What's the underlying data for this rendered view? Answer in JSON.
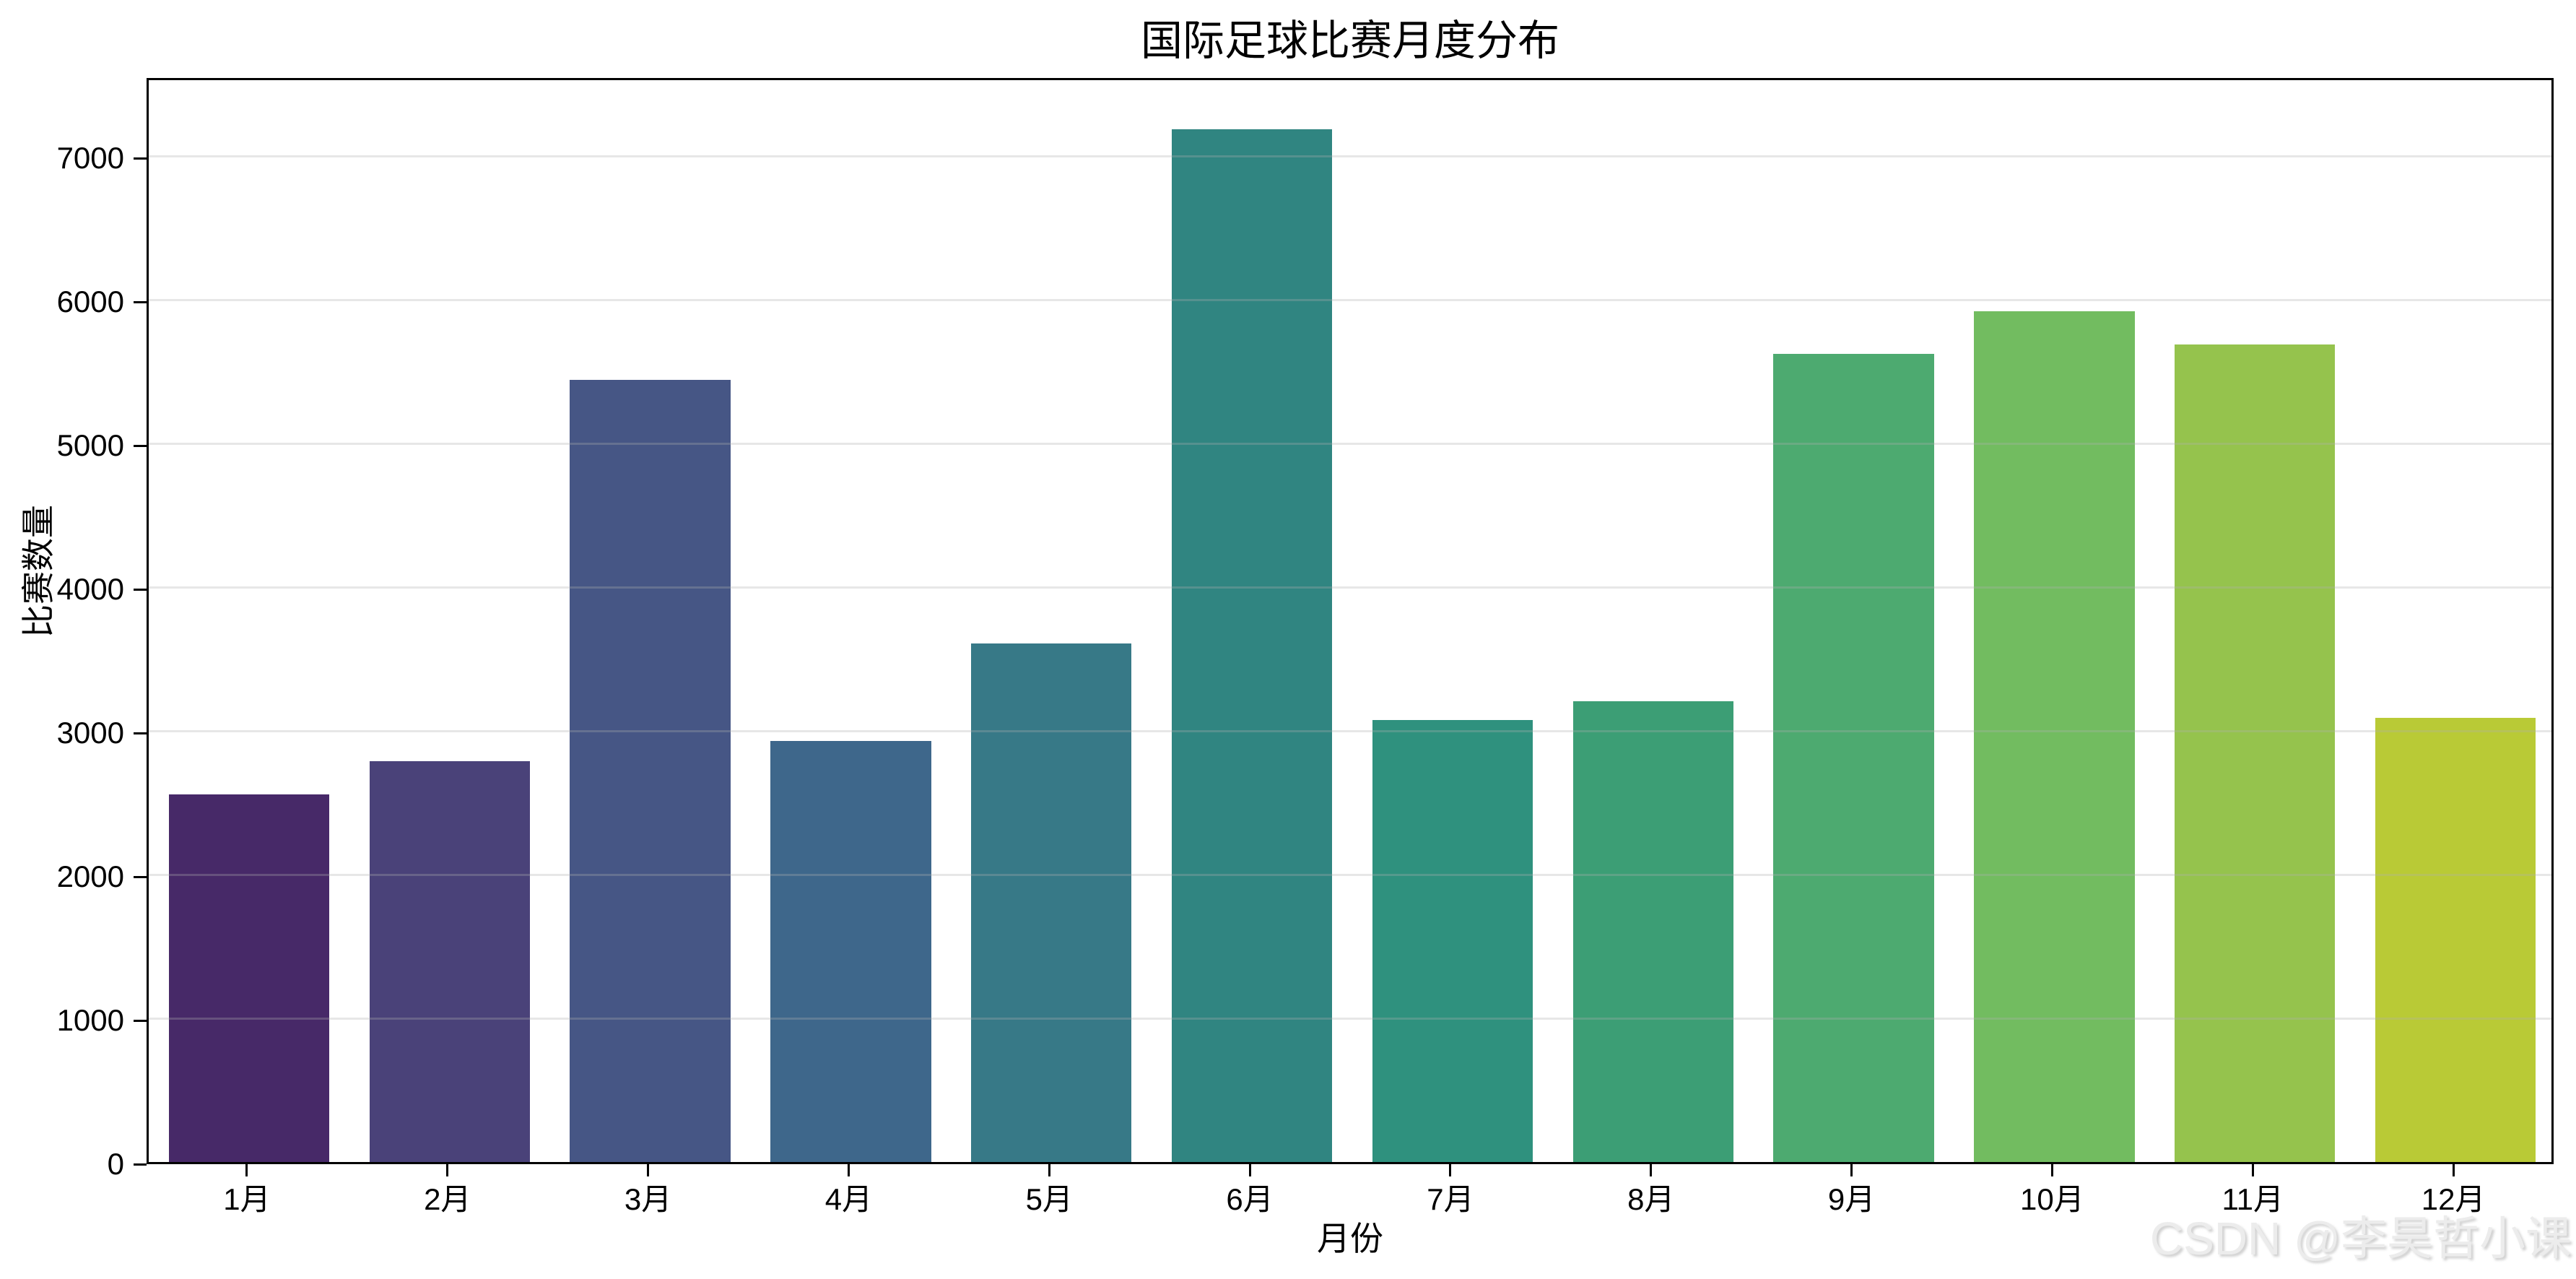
{
  "title": "国际足球比赛月度分布",
  "watermark": "CSDN @李昊哲小课",
  "chart_data": {
    "type": "bar",
    "title": "国际足球比赛月度分布",
    "xlabel": "月份",
    "ylabel": "比赛数量",
    "categories": [
      "1月",
      "2月",
      "3月",
      "4月",
      "5月",
      "6月",
      "7月",
      "8月",
      "9月",
      "10月",
      "11月",
      "12月"
    ],
    "values": [
      2560,
      2790,
      5445,
      2930,
      3610,
      7190,
      3075,
      3205,
      5625,
      5920,
      5690,
      3090
    ],
    "bar_colors": [
      "#472968",
      "#4a4279",
      "#465685",
      "#3e678b",
      "#377987",
      "#308581",
      "#2f917e",
      "#3c9e75",
      "#4daa70",
      "#72bc60",
      "#95c34d",
      "#b9ca36"
    ],
    "ylim": [
      0,
      7560
    ],
    "yticks": [
      0,
      1000,
      2000,
      3000,
      4000,
      5000,
      6000,
      7000
    ],
    "grid": "horizontal-only",
    "legend": "none",
    "bar_width_fraction": 0.8
  }
}
